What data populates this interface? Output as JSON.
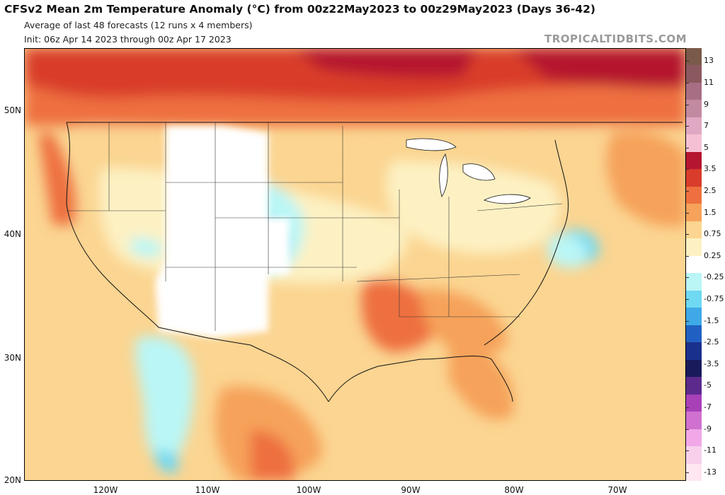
{
  "header": {
    "title": "CFSv2 Mean 2m Temperature Anomaly (°C) from 00z22May2023 to 00z29May2023 (Days 36-42)",
    "subtitle": "Average of last 48 forecasts (12 runs x 4 members)",
    "init": "Init: 06z Apr 14 2023 through 00z Apr 17 2023",
    "brand": "TROPICALTIDBITS.COM"
  },
  "map": {
    "lat_labels": [
      "50N",
      "40N",
      "30N",
      "20N"
    ],
    "lon_labels": [
      "120W",
      "110W",
      "100W",
      "90W",
      "80W",
      "70W"
    ]
  },
  "legend": {
    "labels": [
      "13",
      "11",
      "9",
      "7",
      "5",
      "3.5",
      "2.5",
      "1.5",
      "0.75",
      "0.25",
      "-0.25",
      "-0.75",
      "-1.5",
      "-2.5",
      "-3.5",
      "-5",
      "-7",
      "-9",
      "-11",
      "-13"
    ],
    "colors": [
      "#7a5a48",
      "#8c5860",
      "#a86e84",
      "#c28aa0",
      "#e0a8c2",
      "#f6c0d4",
      "#b5152f",
      "#d93c2a",
      "#ee7040",
      "#f6a25a",
      "#fbd591",
      "#fdf1c3",
      "#ffffff",
      "#baf6f6",
      "#6fd8f2",
      "#3fa8e6",
      "#2060c2",
      "#19308c",
      "#191a5c",
      "#5c2a8c",
      "#a840b8",
      "#d070d0",
      "#f0a8e8",
      "#f8d0ec",
      "#ffe6f0"
    ]
  }
}
